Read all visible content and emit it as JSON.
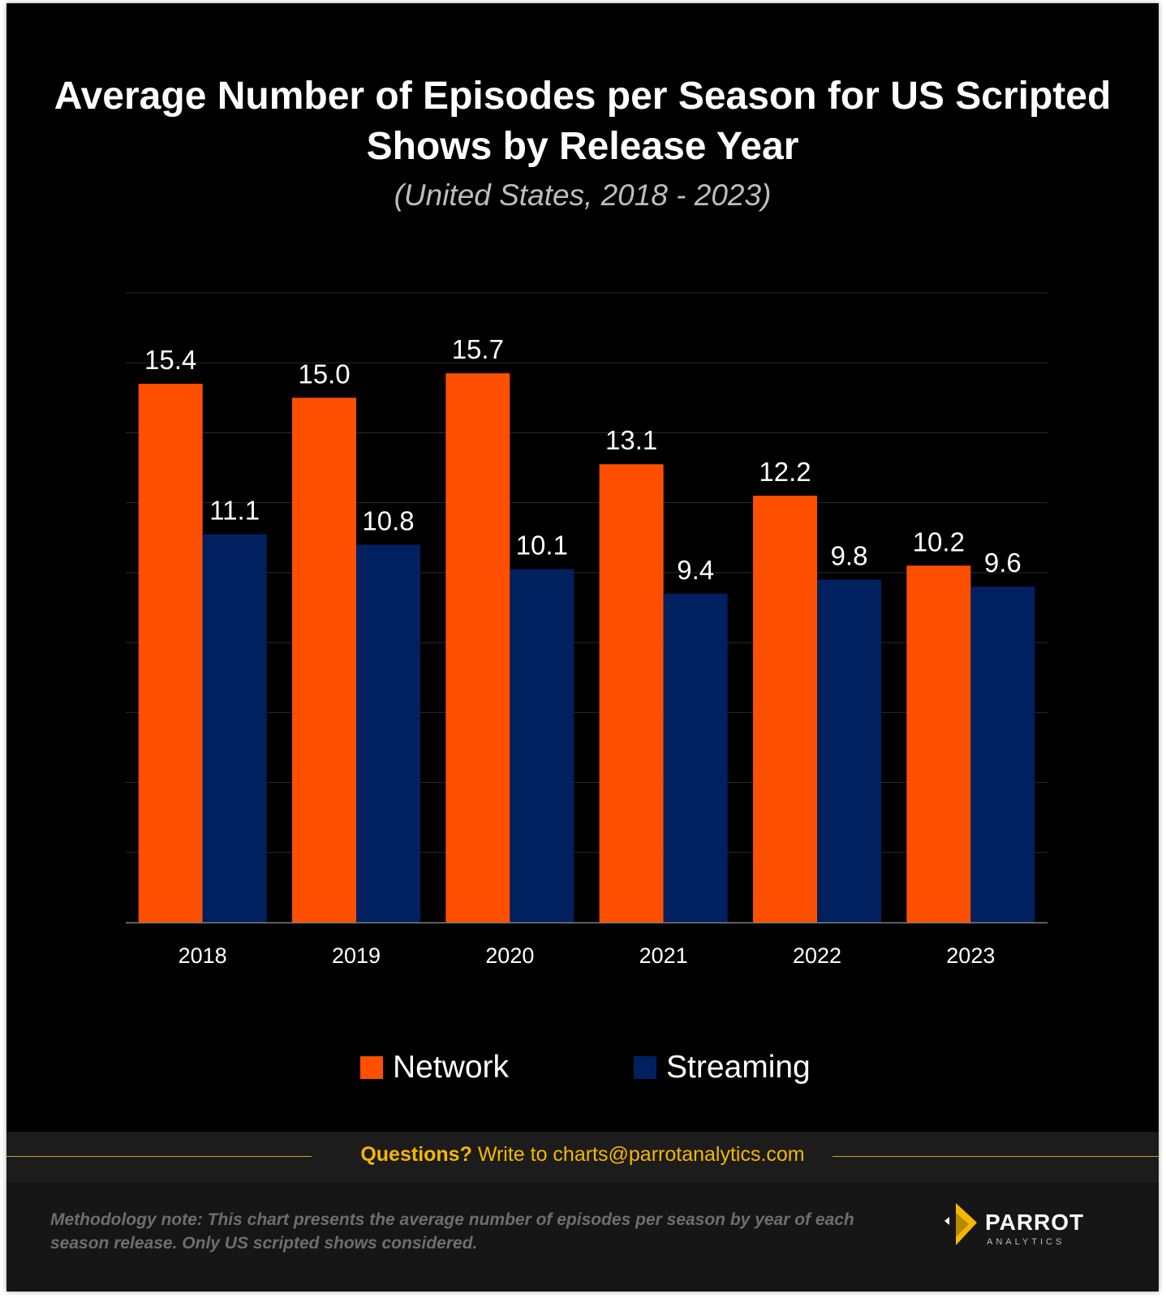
{
  "colors": {
    "network": "#ff4f00",
    "streaming": "#002060",
    "grid": "#2a2a2a",
    "axis": "#7f7f7f"
  },
  "footer": {
    "questions_label": "Questions?",
    "contact_text": "Write to charts@parrotanalytics.com",
    "methodology": "Methodology note: This chart presents the average number of episodes per season by year of each season release. Only US scripted shows considered."
  },
  "logo": {
    "name": "PARROT",
    "sub": "ANALYTICS"
  },
  "chart_data": {
    "type": "bar",
    "title": "Average Number of Episodes per Season for US Scripted Shows by Release Year",
    "subtitle": "(United States, 2018 - 2023)",
    "xlabel": "",
    "ylabel": "",
    "ylim": [
      0,
      18
    ],
    "grid": true,
    "legend_position": "bottom",
    "categories": [
      "2018",
      "2019",
      "2020",
      "2021",
      "2022",
      "2023"
    ],
    "series": [
      {
        "name": "Network",
        "values": [
          15.4,
          15.0,
          15.7,
          13.1,
          12.2,
          10.2
        ],
        "labels": [
          "15.4",
          "15.0",
          "15.7",
          "13.1",
          "12.2",
          "10.2"
        ]
      },
      {
        "name": "Streaming",
        "values": [
          11.1,
          10.8,
          10.1,
          9.4,
          9.8,
          9.6
        ],
        "labels": [
          "11.1",
          "10.8",
          "10.1",
          "9.4",
          "9.8",
          "9.6"
        ]
      }
    ]
  }
}
